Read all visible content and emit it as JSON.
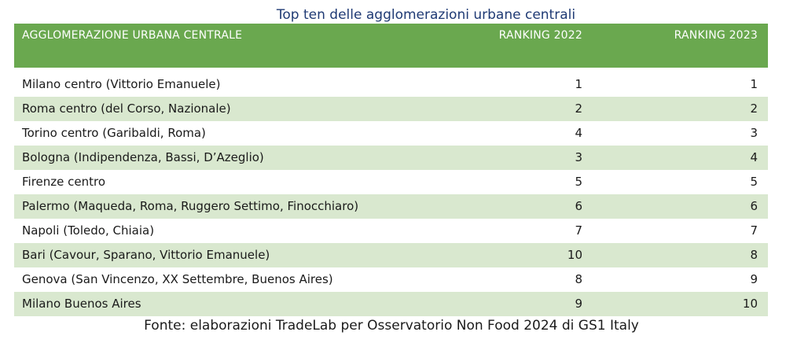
{
  "chart_data": {
    "type": "table",
    "title": "Top ten delle agglomerazioni urbane centrali",
    "columns": [
      "AGGLOMERAZIONE URBANA CENTRALE",
      "RANKING 2022",
      "RANKING 2023"
    ],
    "rows": [
      {
        "name": "Milano centro (Vittorio Emanuele)",
        "r2022": "1",
        "r2023": "1"
      },
      {
        "name": "Roma centro (del Corso, Nazionale)",
        "r2022": "2",
        "r2023": "2"
      },
      {
        "name": "Torino centro (Garibaldi, Roma)",
        "r2022": "4",
        "r2023": "3"
      },
      {
        "name": "Bologna (Indipendenza, Bassi, D’Azeglio)",
        "r2022": "3",
        "r2023": "4"
      },
      {
        "name": "Firenze centro",
        "r2022": "5",
        "r2023": "5"
      },
      {
        "name": "Palermo (Maqueda, Roma, Ruggero Settimo, Finocchiaro)",
        "r2022": "6",
        "r2023": "6"
      },
      {
        "name": "Napoli (Toledo, Chiaia)",
        "r2022": "7",
        "r2023": "7"
      },
      {
        "name": "Bari (Cavour, Sparano, Vittorio Emanuele)",
        "r2022": "10",
        "r2023": "8"
      },
      {
        "name": "Genova (San Vincenzo, XX Settembre, Buenos Aires)",
        "r2022": "8",
        "r2023": "9"
      },
      {
        "name": "Milano Buenos Aires",
        "r2022": "9",
        "r2023": "10"
      }
    ],
    "source": "Fonte: elaborazioni TradeLab per Osservatorio Non Food 2024 di GS1 Italy"
  },
  "colors": {
    "header_bg": "#6aa84f",
    "alt_row_bg": "#d9e8cf",
    "title_color": "#1f3a74"
  }
}
